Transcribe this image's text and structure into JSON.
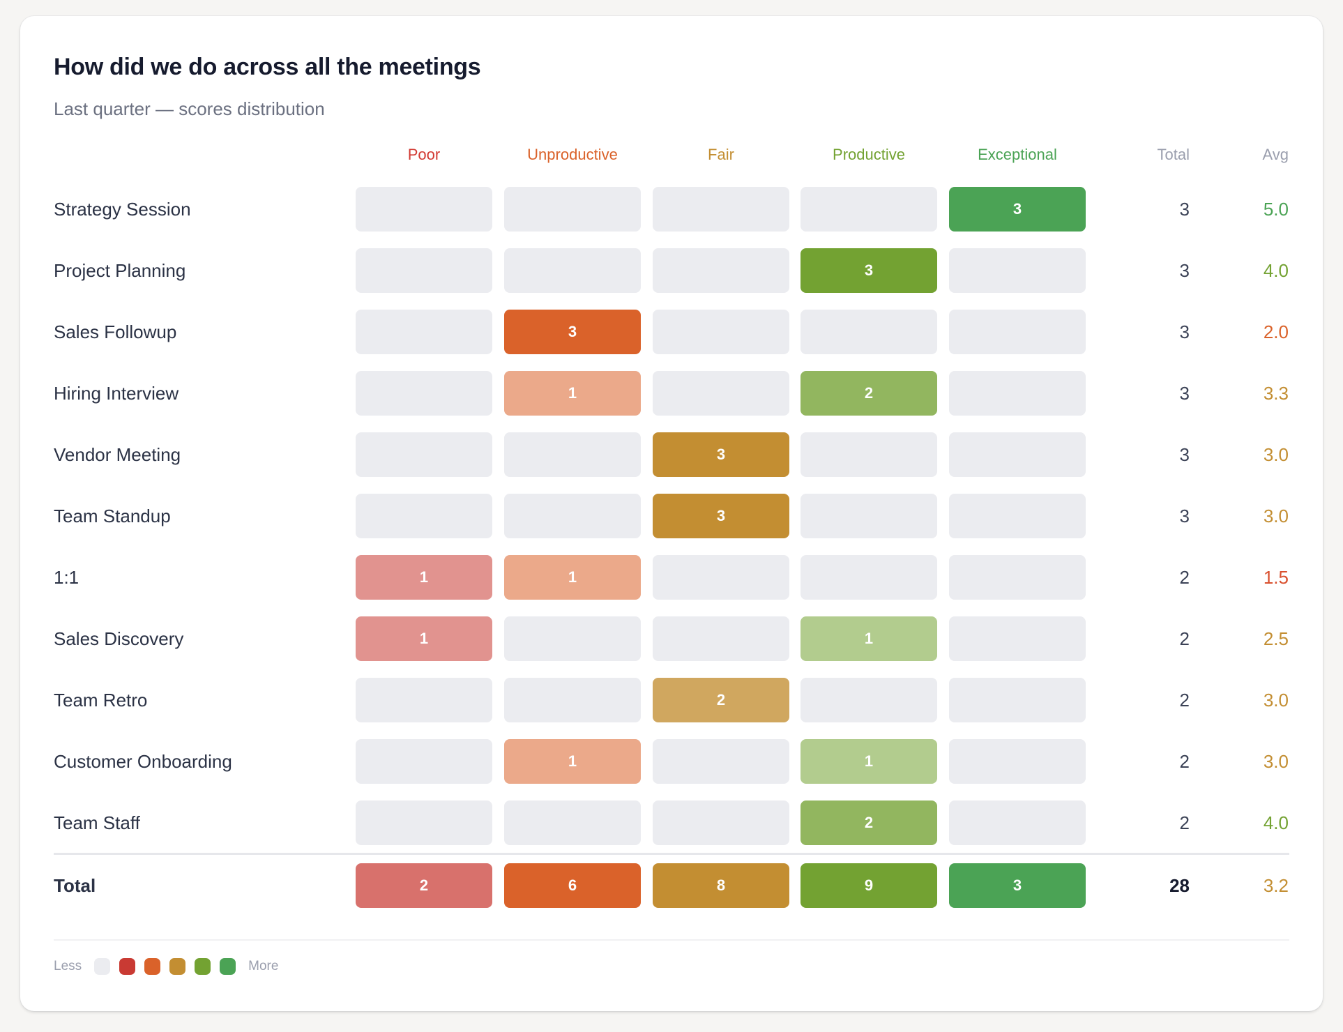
{
  "card": {
    "title": "How did we do across all the meetings",
    "subtitle": "Last quarter — scores distribution"
  },
  "colors": {
    "empty": "#EBECF0",
    "Poor": "#C93A33",
    "Unproductive": "#DA622A",
    "Fair": "#C38E32",
    "Productive": "#73A232",
    "Exceptional": "#4BA355"
  },
  "chart_data": {
    "type": "heatmap",
    "title": "How did we do across all the meetings",
    "subtitle": "Last quarter — scores distribution",
    "columns": [
      "Poor",
      "Unproductive",
      "Fair",
      "Productive",
      "Exceptional"
    ],
    "total_label": "Total",
    "avg_label": "Avg",
    "rows": [
      {
        "name": "Strategy Session",
        "counts": [
          0,
          0,
          0,
          0,
          3
        ],
        "total": "3",
        "avg": "5.0",
        "avg_color": "#4BA355"
      },
      {
        "name": "Project Planning",
        "counts": [
          0,
          0,
          0,
          3,
          0
        ],
        "total": "3",
        "avg": "4.0",
        "avg_color": "#73A232"
      },
      {
        "name": "Sales Followup",
        "counts": [
          0,
          3,
          0,
          0,
          0
        ],
        "total": "3",
        "avg": "2.0",
        "avg_color": "#DA622A"
      },
      {
        "name": "Hiring Interview",
        "counts": [
          0,
          1,
          0,
          2,
          0
        ],
        "total": "3",
        "avg": "3.3",
        "avg_color": "#C38E32"
      },
      {
        "name": "Vendor Meeting",
        "counts": [
          0,
          0,
          3,
          0,
          0
        ],
        "total": "3",
        "avg": "3.0",
        "avg_color": "#C38E32"
      },
      {
        "name": "Team Standup",
        "counts": [
          0,
          0,
          3,
          0,
          0
        ],
        "total": "3",
        "avg": "3.0",
        "avg_color": "#C38E32"
      },
      {
        "name": "1:1",
        "counts": [
          1,
          1,
          0,
          0,
          0
        ],
        "total": "2",
        "avg": "1.5",
        "avg_color": "#D9502E"
      },
      {
        "name": "Sales Discovery",
        "counts": [
          1,
          0,
          0,
          1,
          0
        ],
        "total": "2",
        "avg": "2.5",
        "avg_color": "#C38E32"
      },
      {
        "name": "Team Retro",
        "counts": [
          0,
          0,
          2,
          0,
          0
        ],
        "total": "2",
        "avg": "3.0",
        "avg_color": "#C38E32"
      },
      {
        "name": "Customer Onboarding",
        "counts": [
          0,
          1,
          0,
          1,
          0
        ],
        "total": "2",
        "avg": "3.0",
        "avg_color": "#C38E32"
      },
      {
        "name": "Team Staff",
        "counts": [
          0,
          0,
          0,
          2,
          0
        ],
        "total": "2",
        "avg": "4.0",
        "avg_color": "#73A232"
      }
    ],
    "totals_row": {
      "name": "Total",
      "counts": [
        2,
        6,
        8,
        9,
        3
      ],
      "total": "28",
      "avg": "3.2",
      "avg_color": "#C38E32"
    }
  },
  "legend": {
    "less": "Less",
    "more": "More"
  }
}
